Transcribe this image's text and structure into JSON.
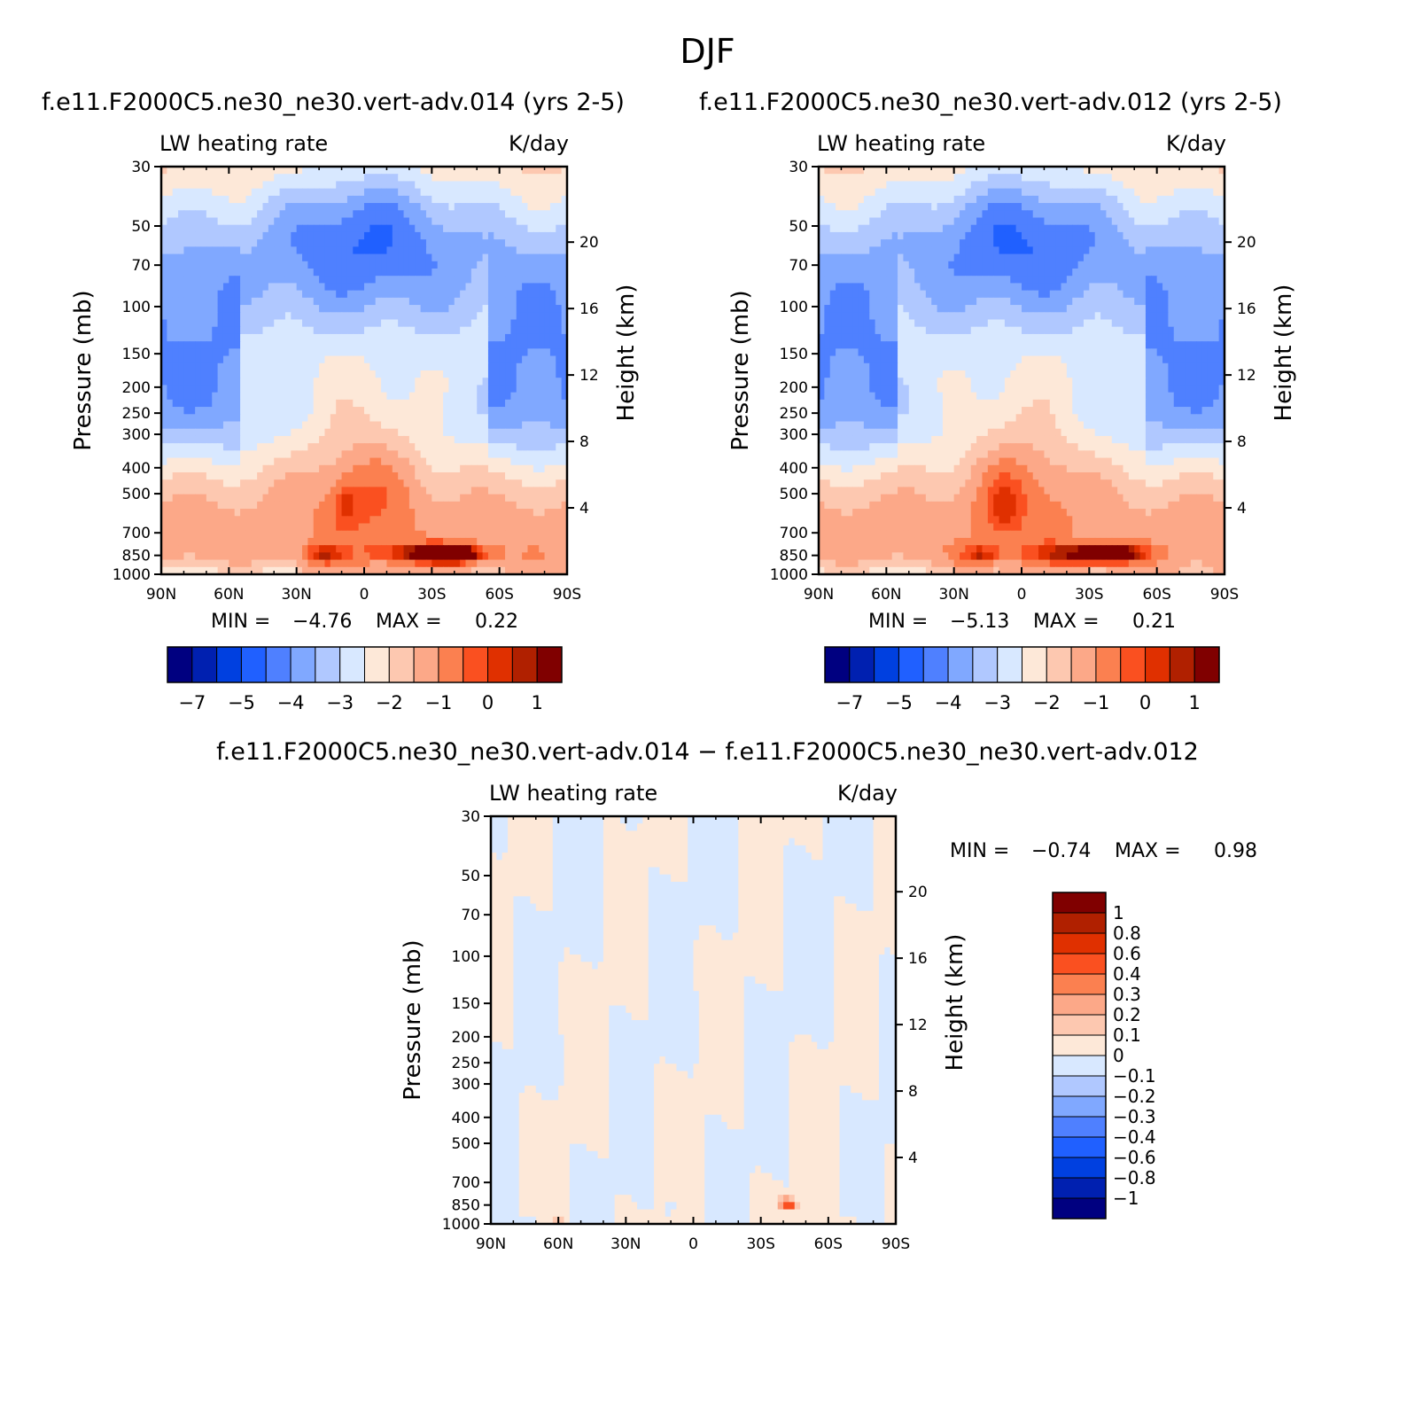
{
  "title": "DJF",
  "variable_label": "LW heating rate",
  "units_label": "K/day",
  "colors": {
    "cbar_main": [
      "#000080",
      "#0020b0",
      "#0040e0",
      "#2060ff",
      "#4f80ff",
      "#80a8ff",
      "#b0c8ff",
      "#d8e8ff",
      "#fde8d8",
      "#fdc8b0",
      "#fca888",
      "#fb8050",
      "#fa5020",
      "#e03000",
      "#b02000",
      "#800000"
    ],
    "cbar_diff": [
      "#800000",
      "#b02000",
      "#e03000",
      "#fa5020",
      "#fb8050",
      "#fca888",
      "#fdc8b0",
      "#fde8d8",
      "#d8e8ff",
      "#b0c8ff",
      "#80a8ff",
      "#4f80ff",
      "#2060ff",
      "#0040e0",
      "#0020b0",
      "#000080"
    ]
  },
  "chart_data": [
    {
      "type": "heatmap",
      "panel": "top-left",
      "title": "f.e11.F2000C5.ne30_ne30.vert-adv.014 (yrs 2-5)",
      "left_label": "LW heating rate",
      "right_label": "K/day",
      "xlabel": "",
      "ylabel": "Pressure (mb)",
      "y2label": "Height (km)",
      "x_ticks": [
        "90N",
        "60N",
        "30N",
        "0",
        "30S",
        "60S",
        "90S"
      ],
      "y_ticks": [
        30,
        50,
        70,
        100,
        150,
        200,
        250,
        300,
        400,
        500,
        700,
        850,
        1000
      ],
      "y2_ticks": [
        20,
        16,
        12,
        8,
        4
      ],
      "min_text": "MIN =",
      "min": "−4.76",
      "max_text": "MAX =",
      "max": "0.22",
      "colorbar_labels": [
        "−7",
        "−5",
        "−4",
        "−3",
        "−2",
        "−1",
        "0",
        "1"
      ]
    },
    {
      "type": "heatmap",
      "panel": "top-right",
      "title": "f.e11.F2000C5.ne30_ne30.vert-adv.012 (yrs 2-5)",
      "left_label": "LW heating rate",
      "right_label": "K/day",
      "xlabel": "",
      "ylabel": "Pressure (mb)",
      "y2label": "Height (km)",
      "x_ticks": [
        "90N",
        "60N",
        "30N",
        "0",
        "30S",
        "60S",
        "90S"
      ],
      "y_ticks": [
        30,
        50,
        70,
        100,
        150,
        200,
        250,
        300,
        400,
        500,
        700,
        850,
        1000
      ],
      "y2_ticks": [
        20,
        16,
        12,
        8,
        4
      ],
      "min_text": "MIN =",
      "min": "−5.13",
      "max_text": "MAX =",
      "max": "0.21",
      "colorbar_labels": [
        "−7",
        "−5",
        "−4",
        "−3",
        "−2",
        "−1",
        "0",
        "1"
      ]
    },
    {
      "type": "heatmap",
      "panel": "bottom-difference",
      "title": "f.e11.F2000C5.ne30_ne30.vert-adv.014 − f.e11.F2000C5.ne30_ne30.vert-adv.012",
      "left_label": "LW heating rate",
      "right_label": "K/day",
      "xlabel": "",
      "ylabel": "Pressure (mb)",
      "y2label": "Height (km)",
      "x_ticks": [
        "90N",
        "60N",
        "30N",
        "0",
        "30S",
        "60S",
        "90S"
      ],
      "y_ticks": [
        30,
        50,
        70,
        100,
        150,
        200,
        250,
        300,
        400,
        500,
        700,
        850,
        1000
      ],
      "y2_ticks": [
        20,
        16,
        12,
        8,
        4
      ],
      "min_text": "MIN =",
      "min": "−0.74",
      "max_text": "MAX =",
      "max": "0.98",
      "colorbar_labels": [
        "1",
        "0.8",
        "0.6",
        "0.4",
        "0.3",
        "0.2",
        "0.1",
        "0",
        "−0.1",
        "−0.2",
        "−0.3",
        "−0.4",
        "−0.6",
        "−0.8",
        "−1"
      ]
    }
  ]
}
